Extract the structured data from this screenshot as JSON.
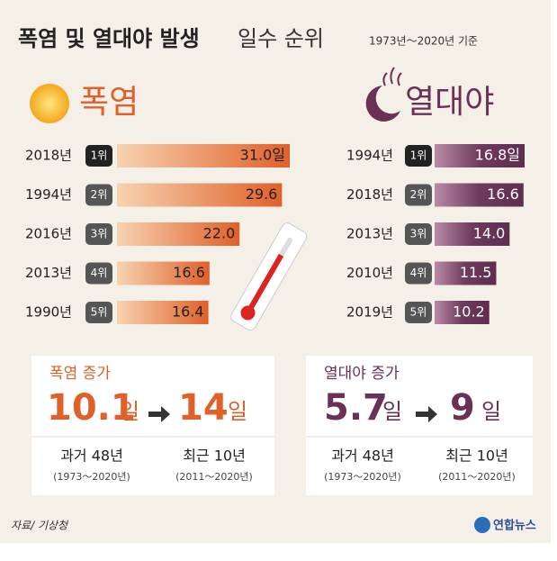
{
  "header": {
    "title": "폭염 및 열대야 발생",
    "title_light": "일수 순위",
    "subtitle": "1973년～2020년 기준"
  },
  "chart_data": [
    {
      "type": "bar",
      "title": "폭염",
      "categories": [
        "2018년",
        "1994년",
        "2016년",
        "2013년",
        "1990년"
      ],
      "ranks": [
        "1위",
        "2위",
        "3위",
        "4위",
        "5위"
      ],
      "values": [
        31.0,
        29.6,
        22.0,
        16.6,
        16.4
      ],
      "value_labels": [
        "31.0일",
        "29.6",
        "22.0",
        "16.6",
        "16.4"
      ],
      "color": "#e0602a"
    },
    {
      "type": "bar",
      "title": "열대야",
      "categories": [
        "1994년",
        "2018년",
        "2013년",
        "2010년",
        "2019년"
      ],
      "ranks": [
        "1위",
        "2위",
        "3위",
        "4위",
        "5위"
      ],
      "values": [
        16.8,
        16.6,
        14.0,
        11.5,
        10.2
      ],
      "value_labels": [
        "16.8일",
        "16.6",
        "14.0",
        "11.5",
        "10.2"
      ],
      "color": "#5e2d4f"
    }
  ],
  "summaries": [
    {
      "label": "폭염 증가",
      "from": 10.1,
      "from_unit": "일",
      "to": 14,
      "to_unit": "일",
      "past": "과거 48년",
      "past_range": "(1973～2020년)",
      "recent": "최근 10년",
      "recent_range": "(2011～2020년)"
    },
    {
      "label": "열대야 증가",
      "from": 5.7,
      "from_unit": "일",
      "to": 9,
      "to_unit": "일",
      "past": "과거 48년",
      "past_range": "(1973～2020년)",
      "recent": "최근 10년",
      "recent_range": "(2011～2020년)"
    }
  ],
  "source": "자료/ 기상청",
  "logo": "연합뉴스"
}
